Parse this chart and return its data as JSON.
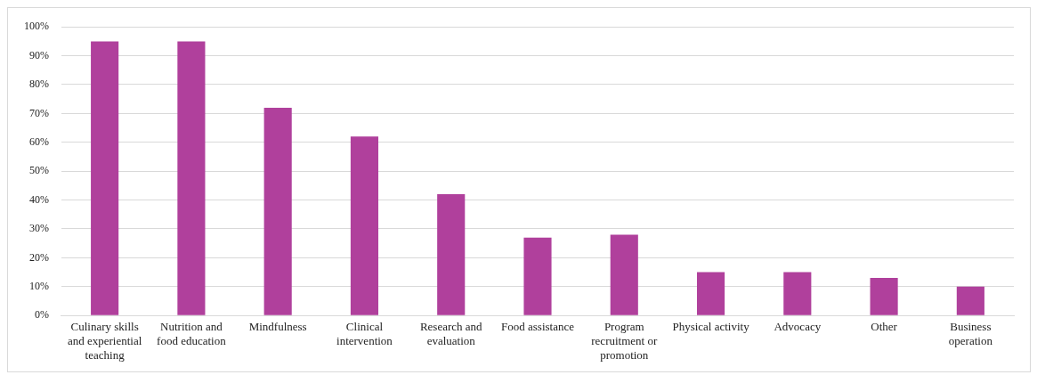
{
  "chart_data": {
    "type": "bar",
    "categories": [
      "Culinary skills and experiential teaching",
      "Nutrition and food education",
      "Mindfulness",
      "Clinical intervention",
      "Research and evaluation",
      "Food assistance",
      "Program recruitment or promotion",
      "Physical activity",
      "Advocacy",
      "Other",
      "Business operation"
    ],
    "values": [
      95,
      95,
      72,
      62,
      42,
      27,
      28,
      15,
      15,
      13,
      10
    ],
    "color": "#b0409c",
    "ylim": [
      0,
      100
    ],
    "yticks": [
      {
        "value": 0,
        "label": "0%"
      },
      {
        "value": 10,
        "label": "10%"
      },
      {
        "value": 20,
        "label": "20%"
      },
      {
        "value": 30,
        "label": "30%"
      },
      {
        "value": 40,
        "label": "40%"
      },
      {
        "value": 50,
        "label": "50%"
      },
      {
        "value": 60,
        "label": "60%"
      },
      {
        "value": 70,
        "label": "70%"
      },
      {
        "value": 80,
        "label": "80%"
      },
      {
        "value": 90,
        "label": "90%"
      },
      {
        "value": 100,
        "label": "100%"
      }
    ],
    "grid": "y",
    "legend": false
  }
}
